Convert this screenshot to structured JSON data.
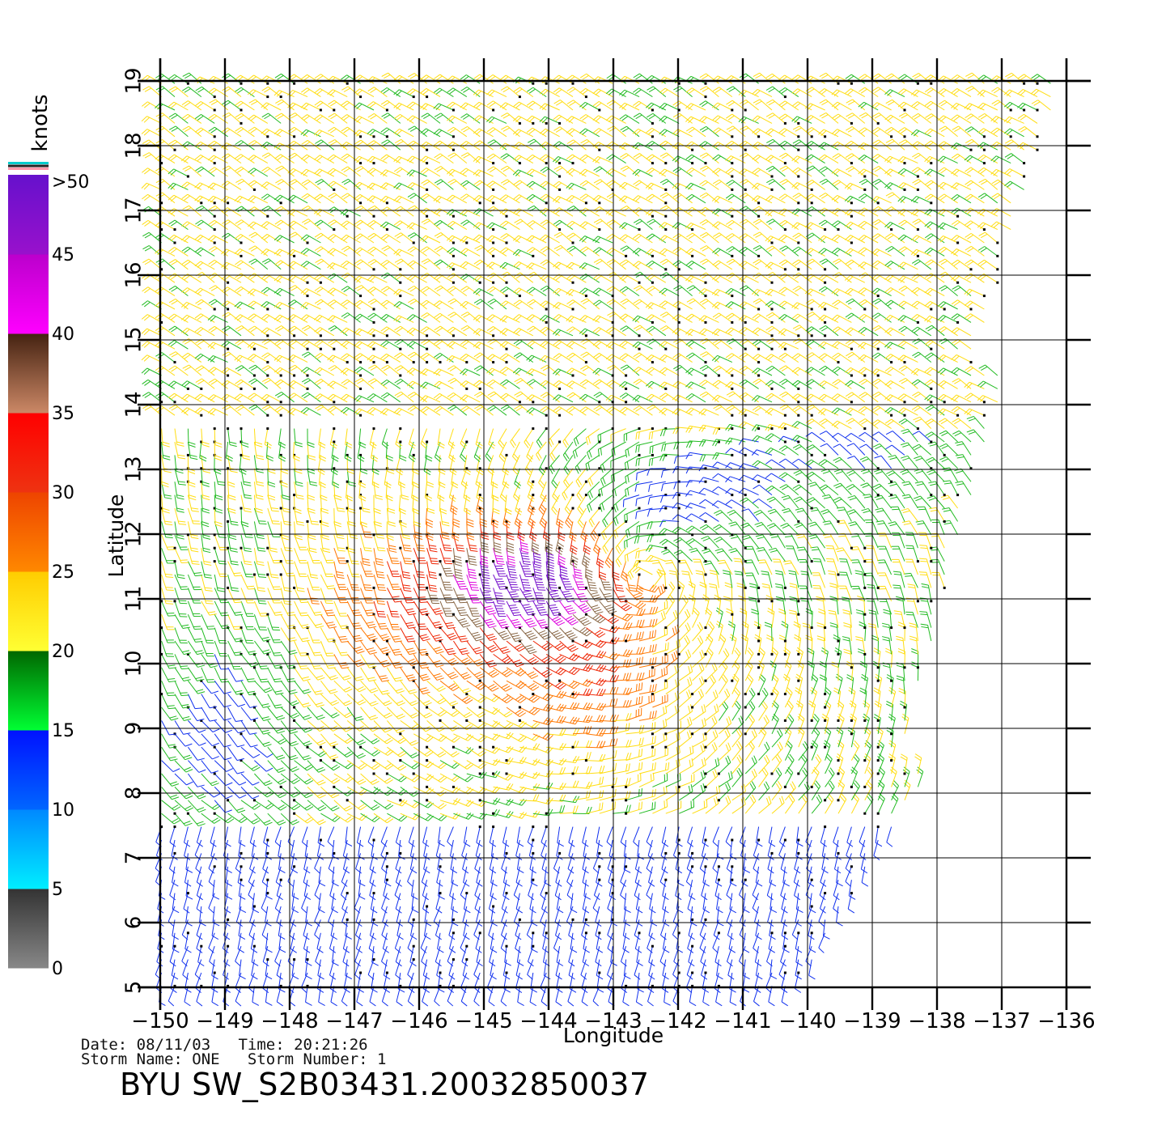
{
  "colorbar": {
    "unit_label": "knots",
    "labels": [
      ">50",
      "45",
      "40",
      "35",
      "30",
      "25",
      "20",
      "15",
      "10",
      "5",
      "0"
    ],
    "bands": [
      {
        "from": 0,
        "to": 5,
        "top": "#333333",
        "bottom": "#888888"
      },
      {
        "from": 5,
        "to": 10,
        "top": "#0088ff",
        "bottom": "#00eeff"
      },
      {
        "from": 10,
        "to": 15,
        "top": "#0011ff",
        "bottom": "#0066ff"
      },
      {
        "from": 15,
        "to": 20,
        "top": "#006600",
        "bottom": "#00ff33"
      },
      {
        "from": 20,
        "to": 25,
        "top": "#ffcc00",
        "bottom": "#ffff33"
      },
      {
        "from": 25,
        "to": 30,
        "top": "#ee4400",
        "bottom": "#ff8800"
      },
      {
        "from": 30,
        "to": 35,
        "top": "#ff0000",
        "bottom": "#ee3311"
      },
      {
        "from": 35,
        "to": 40,
        "top": "#442211",
        "bottom": "#cc8866"
      },
      {
        "from": 40,
        "to": 45,
        "top": "#bb00cc",
        "bottom": "#ff00ff"
      },
      {
        "from": 45,
        "to": 50,
        "top": "#6611cc",
        "bottom": "#9911cc"
      }
    ]
  },
  "map": {
    "x_label": "Longitude",
    "y_label": "Latitude",
    "x_ticks": [
      "−150",
      "−149",
      "−148",
      "−147",
      "−146",
      "−145",
      "−144",
      "−143",
      "−142",
      "−141",
      "−140",
      "−139",
      "−138",
      "−137",
      "−136"
    ],
    "y_ticks": [
      "5",
      "6",
      "7",
      "8",
      "9",
      "10",
      "11",
      "12",
      "13",
      "14",
      "15",
      "16",
      "17",
      "18",
      "19"
    ],
    "lon_range": [
      -150,
      -136
    ],
    "lat_range": [
      5,
      19
    ]
  },
  "info": {
    "line1": "Date: 08/11/03   Time: 20:21:26",
    "line2": "Storm Name: ONE   Storm Number: 1",
    "title": "BYU SW_S2B03431.20032850037"
  }
}
